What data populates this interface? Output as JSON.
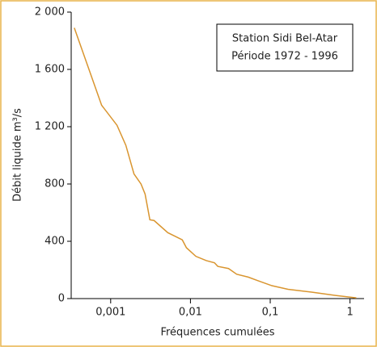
{
  "chart_data": {
    "type": "line",
    "legend_text": [
      "Station Sidi Bel-Atar",
      "Période 1972 - 1996"
    ],
    "x_label": "Fréquences cumulées",
    "y_label": "Débit liquide m³/s",
    "x_log": true,
    "xlim": [
      0.00032,
      1.5
    ],
    "ylim": [
      0,
      2000
    ],
    "xticks": [
      {
        "value": 0.001,
        "label": "0,001"
      },
      {
        "value": 0.01,
        "label": "0,01"
      },
      {
        "value": 0.1,
        "label": "0,1"
      },
      1
    ],
    "yticks": [
      0,
      400,
      800,
      {
        "value": 1200,
        "label": "1 200"
      },
      {
        "value": 1600,
        "label": "1 600"
      },
      {
        "value": 2000,
        "label": "2 000"
      }
    ],
    "color": "#d9952f",
    "x": [
      0.00035,
      0.00077,
      0.0012,
      0.00155,
      0.00196,
      0.0024,
      0.0027,
      0.0031,
      0.0035,
      0.0052,
      0.0079,
      0.0089,
      0.0117,
      0.0158,
      0.02,
      0.022,
      0.03,
      0.038,
      0.053,
      0.07,
      0.105,
      0.167,
      0.33,
      0.66,
      1.2
    ],
    "values": [
      1890,
      1350,
      1210,
      1070,
      870,
      800,
      730,
      550,
      545,
      460,
      410,
      355,
      295,
      265,
      250,
      225,
      210,
      170,
      150,
      125,
      90,
      65,
      45,
      22,
      5
    ]
  }
}
